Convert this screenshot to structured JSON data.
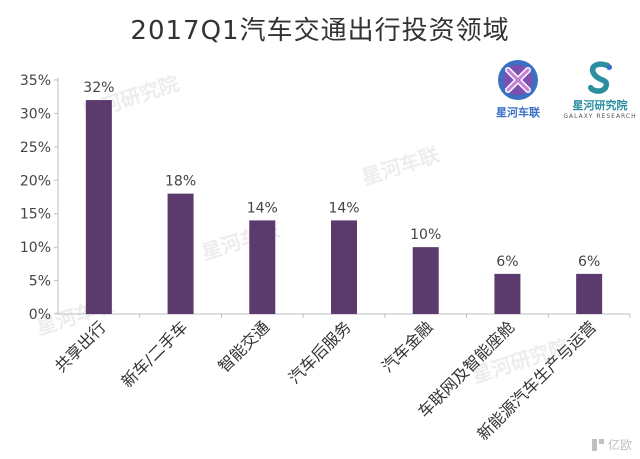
{
  "title": "2017Q1汽车交通出行投资领域",
  "chart_data": {
    "type": "bar",
    "categories": [
      "共享出行",
      "新车/二手车",
      "智能交通",
      "汽车后服务",
      "汽车金融",
      "车联网及智能座舱",
      "新能源汽车生产与运营"
    ],
    "values": [
      32,
      18,
      14,
      14,
      10,
      6,
      6
    ],
    "data_labels": [
      "32%",
      "18%",
      "14%",
      "14%",
      "10%",
      "6%",
      "6%"
    ],
    "yticks": [
      "0%",
      "5%",
      "10%",
      "15%",
      "20%",
      "25%",
      "30%",
      "35%"
    ],
    "ylim": [
      0,
      35
    ],
    "bar_color": "#5b3a6e",
    "grid": false,
    "legend": "none"
  },
  "logos": {
    "galaxy_auto": {
      "caption": "星河车联",
      "color": "#3a6fc4"
    },
    "galaxy_research": {
      "caption": "星河研究院",
      "sub": "GALAXY RESEARCH",
      "color": "#2c8fa0"
    }
  },
  "watermarks": [
    "星河研究院",
    "星河车联",
    "星河车联",
    "星河车联",
    "星河研究院"
  ],
  "corner_mark": "亿欧"
}
